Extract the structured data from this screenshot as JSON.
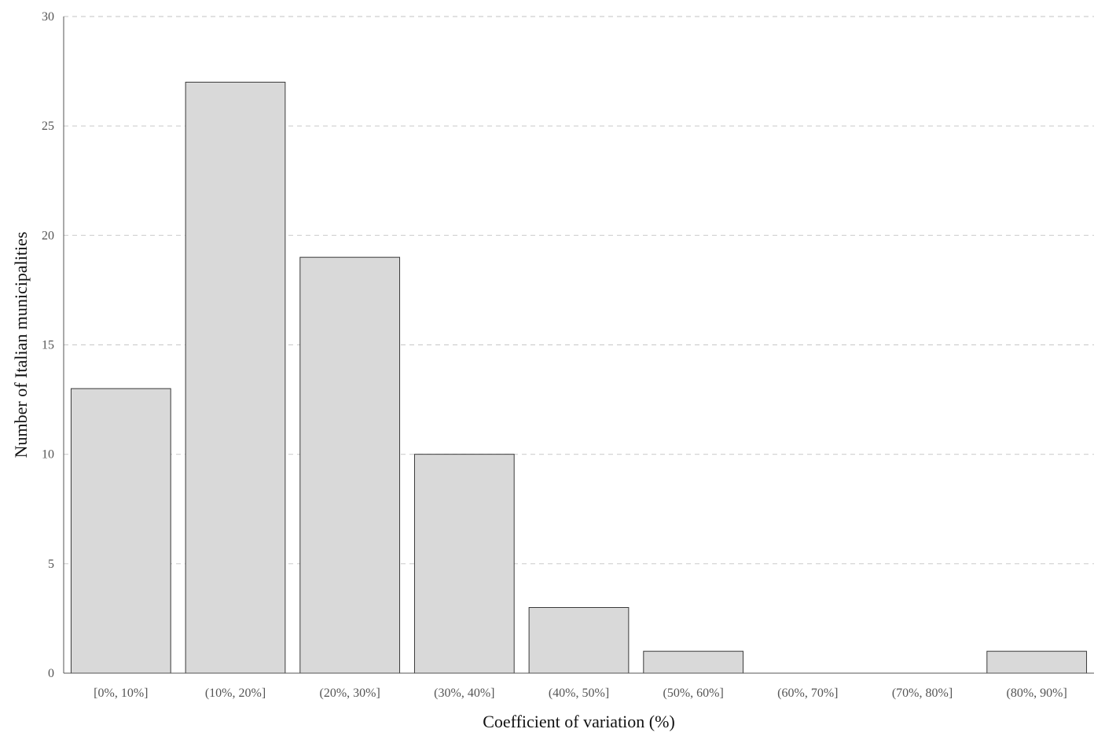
{
  "chart_data": {
    "type": "bar",
    "title": "",
    "xlabel": "Coefficient of variation (%)",
    "ylabel": "Number of Italian municipalities",
    "categories": [
      "[0%, 10%]",
      "(10%, 20%]",
      "(20%, 30%]",
      "(30%, 40%]",
      "(40%, 50%]",
      "(50%, 60%]",
      "(60%, 70%]",
      "(70%, 80%]",
      "(80%, 90%]"
    ],
    "values": [
      13,
      27,
      19,
      10,
      3,
      1,
      0,
      0,
      1
    ],
    "ylim": [
      0,
      30
    ],
    "yticks": [
      0,
      5,
      10,
      15,
      20,
      25,
      30
    ],
    "grid": "horizontal dashed",
    "legend": "none",
    "colors": {
      "bar_fill": "#d9d9d9",
      "bar_stroke": "#3a3a3a",
      "grid": "#cfcfcf",
      "axis": "#555555"
    }
  }
}
